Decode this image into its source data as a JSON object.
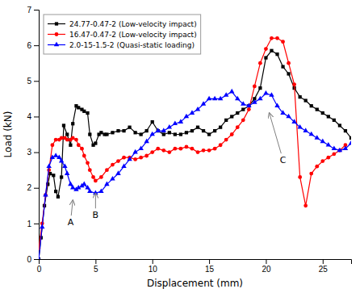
{
  "chart_data": {
    "type": "line",
    "xlabel": "Displacement (mm)",
    "ylabel": "Load (kN)",
    "xlim": [
      0,
      27.5
    ],
    "ylim": [
      0,
      7
    ],
    "xticks": [
      0,
      5,
      10,
      15,
      20,
      25
    ],
    "yticks": [
      0,
      1,
      2,
      3,
      4,
      5,
      6,
      7
    ],
    "legend": "upper left",
    "series": [
      {
        "name": "24.77-0.47-2 (Low-velocity impact)",
        "color": "black",
        "marker": "square",
        "x": [
          0,
          0.2,
          0.5,
          0.8,
          1.0,
          1.3,
          1.5,
          1.7,
          2.0,
          2.2,
          2.5,
          2.8,
          3.0,
          3.3,
          3.5,
          3.8,
          4.0,
          4.3,
          4.5,
          4.8,
          5.0,
          5.3,
          5.5,
          5.8,
          6.0,
          6.5,
          7.0,
          7.5,
          8.0,
          8.5,
          9.0,
          9.5,
          10.0,
          10.5,
          11.0,
          11.5,
          12.0,
          12.5,
          13.0,
          13.5,
          14.0,
          14.5,
          15.0,
          15.5,
          16.0,
          16.5,
          17.0,
          17.5,
          18.0,
          18.5,
          19.0,
          19.5,
          20.0,
          20.5,
          21.0,
          21.5,
          22.0,
          22.5,
          23.0,
          23.5,
          24.0,
          24.5,
          25.0,
          25.5,
          26.0,
          26.5,
          27.0,
          27.5
        ],
        "values": [
          0,
          0.6,
          1.5,
          2.1,
          2.4,
          2.35,
          1.9,
          1.75,
          2.3,
          3.75,
          3.5,
          3.2,
          3.8,
          4.3,
          4.25,
          4.2,
          4.15,
          4.1,
          3.5,
          3.2,
          3.25,
          3.5,
          3.55,
          3.5,
          3.5,
          3.55,
          3.6,
          3.6,
          3.7,
          3.55,
          3.5,
          3.6,
          3.85,
          3.6,
          3.5,
          3.55,
          3.5,
          3.5,
          3.55,
          3.6,
          3.7,
          3.6,
          3.5,
          3.6,
          3.7,
          3.9,
          4.0,
          4.1,
          4.2,
          4.3,
          4.5,
          4.8,
          5.65,
          5.85,
          5.75,
          5.4,
          5.2,
          4.8,
          4.55,
          4.45,
          4.3,
          4.2,
          4.1,
          4.0,
          3.9,
          3.75,
          3.6,
          3.4
        ]
      },
      {
        "name": "16.47-0.47-2 (Low-velocity impact)",
        "color": "red",
        "marker": "circle",
        "x": [
          0,
          0.3,
          0.6,
          0.9,
          1.2,
          1.5,
          1.8,
          2.0,
          2.3,
          2.5,
          2.8,
          3.0,
          3.3,
          3.5,
          3.8,
          4.0,
          4.3,
          4.5,
          4.8,
          5.0,
          5.5,
          6.0,
          6.5,
          7.0,
          7.5,
          8.0,
          8.5,
          9.0,
          9.5,
          10.0,
          10.5,
          11.0,
          11.5,
          12.0,
          12.5,
          13.0,
          13.5,
          14.0,
          14.5,
          15.0,
          15.5,
          16.0,
          16.5,
          17.0,
          17.5,
          18.0,
          18.5,
          19.0,
          19.5,
          20.0,
          20.5,
          21.0,
          21.5,
          22.0,
          22.5,
          23.0,
          23.5,
          24.0,
          24.5,
          25.0,
          25.5,
          26.0,
          26.5,
          27.0
        ],
        "values": [
          0.3,
          1.0,
          1.8,
          2.5,
          3.2,
          3.35,
          3.35,
          3.4,
          3.4,
          3.35,
          3.35,
          3.4,
          3.35,
          3.2,
          3.1,
          2.9,
          2.7,
          2.5,
          2.3,
          2.2,
          2.3,
          2.5,
          2.65,
          2.75,
          2.85,
          2.85,
          2.8,
          2.85,
          2.9,
          3.0,
          3.1,
          3.05,
          3.0,
          3.1,
          3.1,
          3.15,
          3.1,
          3.0,
          3.05,
          3.05,
          3.1,
          3.2,
          3.35,
          3.5,
          3.7,
          3.9,
          4.2,
          4.85,
          5.5,
          5.9,
          6.2,
          6.2,
          6.1,
          5.5,
          4.9,
          2.3,
          1.5,
          2.4,
          2.6,
          2.75,
          2.85,
          2.95,
          3.05,
          3.2
        ]
      },
      {
        "name": "2.0-15-1.5-2 (Quasi-static loading)",
        "color": "blue",
        "marker": "triangle-up",
        "x": [
          0,
          0.3,
          0.6,
          0.9,
          1.2,
          1.5,
          1.8,
          2.0,
          2.3,
          2.5,
          2.8,
          3.0,
          3.3,
          3.5,
          3.8,
          4.0,
          4.3,
          4.5,
          5.0,
          5.5,
          6.0,
          6.5,
          7.0,
          7.5,
          8.0,
          8.5,
          9.0,
          9.5,
          10.0,
          10.5,
          11.0,
          11.5,
          12.0,
          12.5,
          13.0,
          13.5,
          14.0,
          14.5,
          15.0,
          15.5,
          16.0,
          16.5,
          17.0,
          17.5,
          18.0,
          18.5,
          19.0,
          19.5,
          20.0,
          20.5,
          21.0,
          21.5,
          22.0,
          22.5,
          23.0,
          23.5,
          24.0,
          24.5,
          25.0,
          25.5,
          26.0,
          26.5,
          27.0,
          27.5
        ],
        "values": [
          0,
          0.9,
          1.8,
          2.6,
          2.85,
          2.9,
          2.85,
          2.75,
          2.6,
          2.4,
          2.1,
          2.0,
          1.95,
          2.0,
          2.05,
          2.1,
          2.0,
          1.9,
          1.85,
          1.9,
          2.1,
          2.25,
          2.4,
          2.6,
          2.8,
          3.0,
          3.1,
          3.3,
          3.5,
          3.6,
          3.6,
          3.7,
          3.8,
          3.85,
          4.0,
          4.1,
          4.2,
          4.35,
          4.5,
          4.5,
          4.5,
          4.6,
          4.7,
          4.5,
          4.35,
          4.3,
          4.4,
          4.5,
          4.65,
          4.6,
          4.3,
          4.1,
          4.0,
          3.85,
          3.7,
          3.6,
          3.5,
          3.4,
          3.3,
          3.2,
          3.1,
          3.05,
          3.1,
          3.25
        ]
      }
    ],
    "annotations": [
      {
        "text": "A",
        "x": 3.0,
        "y": 1.65,
        "text_x": 2.8,
        "text_y": 0.95
      },
      {
        "text": "B",
        "x": 5.0,
        "y": 1.85,
        "text_x": 5.0,
        "text_y": 1.15
      },
      {
        "text": "C",
        "x": 20.3,
        "y": 4.1,
        "text_x": 21.5,
        "text_y": 2.7
      }
    ]
  }
}
